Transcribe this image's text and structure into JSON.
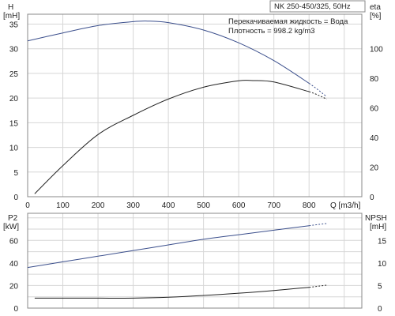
{
  "header": {
    "model": "NK 250-450/325, 50Hz",
    "liquid": "Перекачиваемая жидкость = Вода",
    "density": "Плотность = 998.2 kg/m3"
  },
  "colors": {
    "head_curve": "#3b4f8c",
    "eta_curve": "#222222",
    "p2_curve": "#222222",
    "npsh_curve": "#3b4f8c",
    "grid": "#d6d6d6"
  },
  "chart_data": [
    {
      "type": "line",
      "x_axis": {
        "label": "Q [m3/h]",
        "range": [
          0,
          950
        ],
        "ticks": [
          0,
          100,
          200,
          300,
          400,
          500,
          600,
          700,
          800
        ]
      },
      "y_axis_left": {
        "label_line1": "H",
        "label_line2": "[mH]",
        "range": [
          0,
          37
        ],
        "ticks": [
          0,
          5,
          10,
          15,
          20,
          25,
          30,
          35
        ]
      },
      "y_axis_right": {
        "label_line1": "eta",
        "label_line2": "[%]",
        "range": [
          0,
          123.33
        ],
        "ticks": [
          0,
          20,
          40,
          60,
          80,
          100
        ]
      },
      "series": [
        {
          "key": "head",
          "axis": "left",
          "x": [
            0,
            100,
            200,
            300,
            340,
            400,
            500,
            600,
            700,
            800,
            850
          ],
          "y": [
            31.6,
            33.2,
            34.7,
            35.5,
            35.6,
            35.3,
            33.8,
            31.2,
            27.6,
            23.0,
            20.3
          ]
        },
        {
          "key": "eta",
          "axis": "right",
          "x": [
            20,
            100,
            200,
            300,
            400,
            500,
            600,
            640,
            700,
            800,
            850
          ],
          "y": [
            2,
            21,
            42,
            55,
            66,
            74,
            78.3,
            78.5,
            77.5,
            71,
            66
          ]
        }
      ],
      "grid": true
    },
    {
      "type": "line",
      "x_axis": {
        "range": [
          0,
          950
        ]
      },
      "y_axis_left": {
        "label_line1": "P2",
        "label_line2": "[kW]",
        "range": [
          0,
          84
        ],
        "ticks": [
          0,
          20,
          40,
          60
        ]
      },
      "y_axis_right": {
        "label_line1": "NPSH",
        "label_line2": "[mH]",
        "range": [
          0,
          21
        ],
        "ticks": [
          0,
          5,
          10,
          15
        ]
      },
      "series": [
        {
          "key": "p2",
          "axis": "left",
          "x": [
            0,
            100,
            200,
            300,
            400,
            500,
            600,
            700,
            800,
            850
          ],
          "y": [
            36,
            41,
            46,
            51,
            56,
            61,
            65,
            69,
            73,
            75
          ]
        },
        {
          "key": "npsh",
          "axis": "right",
          "x": [
            20,
            100,
            200,
            300,
            400,
            500,
            600,
            700,
            800,
            850
          ],
          "y": [
            2.2,
            2.2,
            2.2,
            2.2,
            2.4,
            2.8,
            3.3,
            3.9,
            4.6,
            5.1
          ]
        }
      ],
      "grid": true
    }
  ]
}
